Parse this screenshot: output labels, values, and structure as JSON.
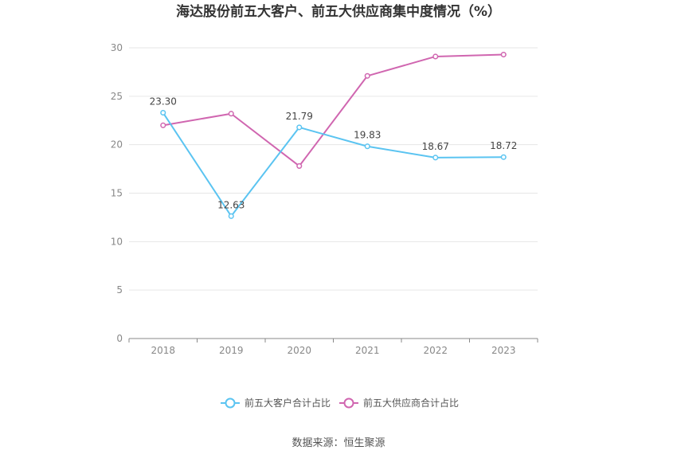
{
  "chart_data": {
    "type": "line",
    "title": "海达股份前五大客户、前五大供应商集中度情况（%）",
    "categories": [
      "2018",
      "2019",
      "2020",
      "2021",
      "2022",
      "2023"
    ],
    "ylim": [
      0,
      30
    ],
    "yticks": [
      0,
      5,
      10,
      15,
      20,
      25,
      30
    ],
    "grid": true,
    "legend_position": "bottom",
    "series": [
      {
        "name": "前五大客户合计占比",
        "color": "#5bc4f1",
        "values": [
          23.3,
          12.63,
          21.79,
          19.83,
          18.67,
          18.72
        ],
        "labels": [
          "23.30",
          "12.63",
          "21.79",
          "19.83",
          "18.67",
          "18.72"
        ]
      },
      {
        "name": "前五大供应商合计占比",
        "color": "#d066b0",
        "values": [
          22.0,
          23.2,
          17.8,
          27.1,
          29.1,
          29.3
        ],
        "labels": []
      }
    ]
  },
  "source": "数据来源：恒生聚源"
}
